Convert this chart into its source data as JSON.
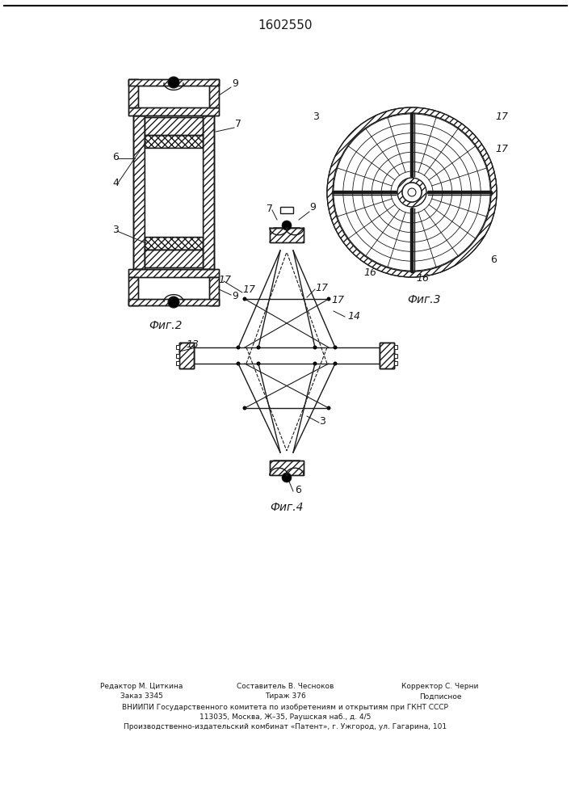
{
  "title": "1602550",
  "fig2_caption": "Фиг.2",
  "fig3_caption": "Фиг.3",
  "fig4_caption": "Фиг.4",
  "footer_col1_line1": "Редактор М. Циткина",
  "footer_col1_line2": "Заказ 3345",
  "footer_col2_line1": "Составитель В. Чесноков",
  "footer_col2_line2": "Тираж 376",
  "footer_col3_line1": "Корректор С. Черни",
  "footer_col3_line2": "Подписное",
  "footer_line3": "ВНИИПИ Государственного комитета по изобретениям и открытиям при ГКНТ СССР",
  "footer_line4": "113035, Москва, Ж–35, Раушская наб., д. 4/5",
  "footer_line5": "Производственно-издательский комбинат «Патент», г. Ужгород, ул. Гагарина, 101",
  "bg_color": "#ffffff",
  "line_color": "#1a1a1a"
}
